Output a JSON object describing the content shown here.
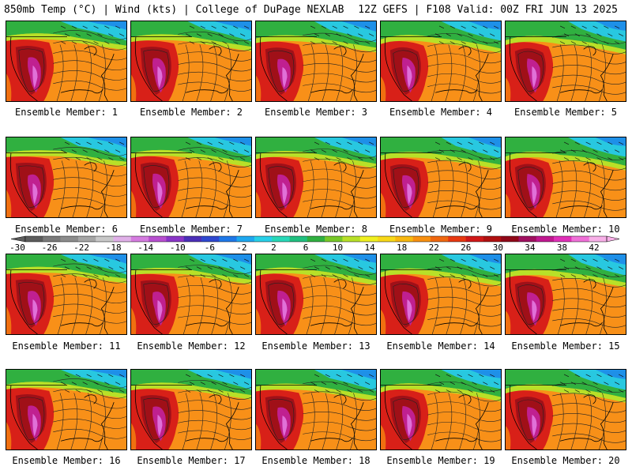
{
  "header": {
    "left": "850mb Temp (°C) | Wind (kts) | College of DuPage NEXLAB",
    "right": "12Z GEFS | F108 Valid: 00Z FRI JUN 13 2025"
  },
  "members": [
    {
      "label": "Ensemble Member: 1"
    },
    {
      "label": "Ensemble Member: 2"
    },
    {
      "label": "Ensemble Member: 3"
    },
    {
      "label": "Ensemble Member: 4"
    },
    {
      "label": "Ensemble Member: 5"
    },
    {
      "label": "Ensemble Member: 6"
    },
    {
      "label": "Ensemble Member: 7"
    },
    {
      "label": "Ensemble Member: 8"
    },
    {
      "label": "Ensemble Member: 9"
    },
    {
      "label": "Ensemble Member: 10"
    },
    {
      "label": "Ensemble Member: 11"
    },
    {
      "label": "Ensemble Member: 12"
    },
    {
      "label": "Ensemble Member: 13"
    },
    {
      "label": "Ensemble Member: 14"
    },
    {
      "label": "Ensemble Member: 15"
    },
    {
      "label": "Ensemble Member: 16"
    },
    {
      "label": "Ensemble Member: 17"
    },
    {
      "label": "Ensemble Member: 18"
    },
    {
      "label": "Ensemble Member: 19"
    },
    {
      "label": "Ensemble Member: 20"
    }
  ],
  "colorbar": {
    "ticks": [
      "-30",
      "-26",
      "-22",
      "-18",
      "-14",
      "-10",
      "-6",
      "-2",
      "2",
      "6",
      "10",
      "14",
      "18",
      "22",
      "26",
      "30",
      "34",
      "38",
      "42"
    ],
    "colors": [
      "#5c5c5c",
      "#7a7a7a",
      "#8c8c8c",
      "#a6a6a6",
      "#c8c8c8",
      "#e0b0e8",
      "#d57ce0",
      "#b84fd0",
      "#8a35c8",
      "#4b2fb8",
      "#2f48d0",
      "#1e78e8",
      "#1ea8f0",
      "#28d0e8",
      "#28d8b8",
      "#20c080",
      "#30b040",
      "#78c828",
      "#b8e028",
      "#f0f020",
      "#f8d818",
      "#f8b810",
      "#f89010",
      "#f06810",
      "#e83810",
      "#d01818",
      "#b01010",
      "#900818",
      "#a01060",
      "#c01890",
      "#e030b8",
      "#f070d8",
      "#f8b0e8"
    ]
  }
}
